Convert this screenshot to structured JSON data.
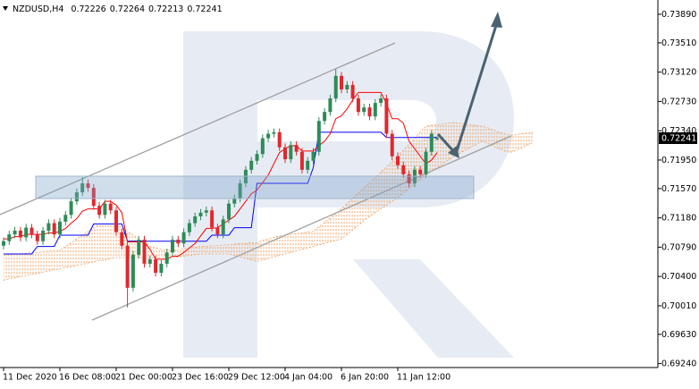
{
  "chart_data": {
    "type": "candlestick",
    "symbol": "NZDUSD,H4",
    "header_values": [
      0.72226,
      0.72264,
      0.72213,
      0.72241
    ],
    "categories": [
      "11 Dec 2020",
      null,
      null,
      null,
      null,
      null,
      null,
      null,
      null,
      null,
      "16 Dec 08:00",
      null,
      null,
      null,
      null,
      null,
      null,
      null,
      null,
      null,
      "21 Dec 00:00",
      null,
      null,
      null,
      null,
      null,
      null,
      null,
      null,
      null,
      "23 Dec 16:00",
      null,
      null,
      null,
      null,
      null,
      null,
      null,
      null,
      null,
      "29 Dec 12:00",
      null,
      null,
      null,
      null,
      null,
      null,
      null,
      null,
      null,
      "4 Jan 04:00",
      null,
      null,
      null,
      null,
      null,
      null,
      null,
      null,
      null,
      "6 Jan 20:00",
      null,
      null,
      null,
      null,
      null,
      null,
      null,
      null,
      null,
      "11 Jan 12:00",
      null,
      null,
      null,
      null,
      null,
      null,
      null,
      null,
      null,
      null,
      null,
      null,
      null,
      null,
      null,
      null,
      null,
      null,
      null,
      null,
      null,
      null,
      null,
      null
    ],
    "open": [
      0.7081,
      0.7087,
      0.7096,
      0.7101,
      0.7092,
      0.7105,
      0.7096,
      0.7087,
      0.7101,
      0.7111,
      0.7096,
      0.7113,
      0.7122,
      0.714,
      0.7152,
      0.7164,
      0.7158,
      0.7134,
      0.7122,
      0.7137,
      0.7128,
      0.7099,
      0.7081,
      0.7025,
      0.7069,
      0.7089,
      0.7057,
      0.7063,
      0.7045,
      0.7057,
      0.7072,
      0.7089,
      0.7084,
      0.7099,
      0.7111,
      0.712,
      0.7125,
      0.7128,
      0.7105,
      0.7096,
      0.7116,
      0.7137,
      0.7144,
      0.7164,
      0.7182,
      0.7194,
      0.7203,
      0.7224,
      0.723,
      0.7232,
      0.7212,
      0.7196,
      0.7215,
      0.7206,
      0.7182,
      0.7194,
      0.7206,
      0.7247,
      0.7259,
      0.7277,
      0.7307,
      0.7289,
      0.7295,
      0.7277,
      0.7259,
      0.7265,
      0.7253,
      0.7271,
      0.7277,
      0.723,
      0.72,
      0.7188,
      0.7176,
      0.7164,
      0.7182,
      0.7176,
      0.7206,
      0.72226,
      null,
      null,
      null,
      null,
      null,
      null,
      null,
      null,
      null,
      null,
      null,
      null,
      null,
      null,
      null,
      null,
      null
    ],
    "high": [
      0.7092,
      0.7101,
      0.7106,
      0.7106,
      0.711,
      0.711,
      0.7101,
      0.7106,
      0.7116,
      0.7116,
      0.7118,
      0.7127,
      0.7145,
      0.7157,
      0.7172,
      0.7169,
      0.7163,
      0.7139,
      0.7142,
      0.7142,
      0.7133,
      0.7104,
      0.7086,
      0.7074,
      0.7094,
      0.7094,
      0.7068,
      0.7068,
      0.7062,
      0.7077,
      0.7094,
      0.7094,
      0.7104,
      0.7116,
      0.7125,
      0.713,
      0.7133,
      0.7133,
      0.711,
      0.7121,
      0.7142,
      0.7149,
      0.7169,
      0.7187,
      0.7199,
      0.7208,
      0.7229,
      0.7235,
      0.7237,
      0.7237,
      0.7217,
      0.722,
      0.722,
      0.7211,
      0.7199,
      0.7211,
      0.7252,
      0.7264,
      0.7282,
      0.7316,
      0.7312,
      0.73,
      0.73,
      0.7282,
      0.727,
      0.727,
      0.7276,
      0.7282,
      0.7282,
      0.7235,
      0.7205,
      0.7193,
      0.7181,
      0.7187,
      0.7187,
      0.7211,
      0.7235,
      0.72264,
      null,
      null,
      null,
      null,
      null,
      null,
      null,
      null,
      null,
      null,
      null,
      null,
      null,
      null,
      null,
      null,
      null
    ],
    "low": [
      0.7076,
      0.7082,
      0.7091,
      0.7087,
      0.7087,
      0.7091,
      0.7082,
      0.7082,
      0.7096,
      0.7091,
      0.7091,
      0.7108,
      0.7117,
      0.7135,
      0.7147,
      0.7153,
      0.7129,
      0.7117,
      0.7117,
      0.7123,
      0.7094,
      0.7076,
      0.6999,
      0.702,
      0.7064,
      0.7052,
      0.7052,
      0.704,
      0.704,
      0.7052,
      0.7067,
      0.7079,
      0.7079,
      0.7094,
      0.7106,
      0.7115,
      0.712,
      0.71,
      0.7091,
      0.7091,
      0.7111,
      0.7132,
      0.7139,
      0.7159,
      0.7177,
      0.7189,
      0.7198,
      0.7219,
      0.7225,
      0.7207,
      0.7191,
      0.7191,
      0.7201,
      0.7177,
      0.7177,
      0.7189,
      0.7201,
      0.7242,
      0.7254,
      0.7272,
      0.7284,
      0.7284,
      0.7272,
      0.7254,
      0.7254,
      0.7248,
      0.7248,
      0.7266,
      0.7225,
      0.7195,
      0.7183,
      0.7171,
      0.7159,
      0.7159,
      0.7171,
      0.7171,
      0.7201,
      0.72213,
      null,
      null,
      null,
      null,
      null,
      null,
      null,
      null,
      null,
      null,
      null,
      null,
      null,
      null,
      null,
      null,
      null
    ],
    "close": [
      0.7087,
      0.7096,
      0.7101,
      0.7092,
      0.7105,
      0.7096,
      0.7087,
      0.7101,
      0.7111,
      0.7096,
      0.7113,
      0.7122,
      0.714,
      0.7152,
      0.7164,
      0.7158,
      0.7134,
      0.7122,
      0.7137,
      0.7128,
      0.7099,
      0.7081,
      0.7025,
      0.7069,
      0.7089,
      0.7057,
      0.7063,
      0.7045,
      0.7057,
      0.7072,
      0.7089,
      0.7084,
      0.7099,
      0.7111,
      0.712,
      0.7125,
      0.7128,
      0.7105,
      0.7096,
      0.7116,
      0.7137,
      0.7144,
      0.7164,
      0.7182,
      0.7194,
      0.7203,
      0.7224,
      0.723,
      0.7232,
      0.7212,
      0.7196,
      0.7215,
      0.7206,
      0.7182,
      0.7194,
      0.7206,
      0.7247,
      0.7259,
      0.7277,
      0.7307,
      0.7289,
      0.7295,
      0.7277,
      0.7259,
      0.7265,
      0.7253,
      0.7271,
      0.7277,
      0.723,
      0.72,
      0.7188,
      0.7176,
      0.7164,
      0.7182,
      0.7176,
      0.7206,
      0.723,
      0.72241,
      null,
      null,
      null,
      null,
      null,
      null,
      null,
      null,
      null,
      null,
      null,
      null,
      null,
      null,
      null,
      null,
      null
    ],
    "up_color": "#2e8b57",
    "down_color": "#e0282e",
    "conversion_line": {
      "color": "#ff0000",
      "values": [
        0.709,
        0.709,
        0.7093,
        0.7093,
        0.7096,
        0.7096,
        0.7096,
        0.7096,
        0.7098,
        0.7098,
        0.71,
        0.7104,
        0.7111,
        0.7117,
        0.7127,
        0.713,
        0.713,
        0.713,
        0.714,
        0.714,
        0.7135,
        0.7125,
        0.7086,
        0.7086,
        0.7086,
        0.7086,
        0.7076,
        0.7063,
        0.7063,
        0.7063,
        0.7067,
        0.7067,
        0.7072,
        0.7078,
        0.7084,
        0.7094,
        0.7104,
        0.7104,
        0.7105,
        0.711,
        0.7115,
        0.712,
        0.713,
        0.714,
        0.715,
        0.7155,
        0.7165,
        0.7175,
        0.719,
        0.7205,
        0.721,
        0.7214,
        0.7214,
        0.7207,
        0.7207,
        0.7207,
        0.7214,
        0.722,
        0.723,
        0.725,
        0.7254,
        0.7263,
        0.7275,
        0.7285,
        0.7285,
        0.7285,
        0.7285,
        0.7285,
        0.727,
        0.725,
        0.725,
        0.7244,
        0.722,
        0.721,
        0.72,
        0.719,
        0.7195,
        0.7205,
        null,
        null,
        null,
        null,
        null,
        null,
        null,
        null,
        null,
        null,
        null,
        null,
        null,
        null,
        null,
        null,
        null
      ]
    },
    "base_line": {
      "color": "#0000ff",
      "values": [
        0.707,
        0.707,
        0.707,
        0.707,
        0.707,
        0.707,
        0.708,
        0.708,
        0.708,
        0.708,
        0.7095,
        0.7095,
        0.7095,
        0.7095,
        0.7095,
        0.7095,
        0.711,
        0.711,
        0.711,
        0.711,
        0.711,
        0.711,
        0.7087,
        0.7087,
        0.7087,
        0.7087,
        0.7087,
        0.7087,
        0.7087,
        0.7087,
        0.7087,
        0.7087,
        0.7087,
        0.7087,
        0.7087,
        0.7087,
        0.7087,
        0.7095,
        0.7095,
        0.7095,
        0.7095,
        0.7105,
        0.7105,
        0.7105,
        0.7105,
        0.7164,
        0.7164,
        0.7164,
        0.7164,
        0.7164,
        0.7164,
        0.7164,
        0.7164,
        0.7164,
        0.7164,
        0.7185,
        0.7232,
        0.7232,
        0.7232,
        0.7232,
        0.7232,
        0.7232,
        0.7232,
        0.7232,
        0.7232,
        0.7232,
        0.7232,
        0.7232,
        0.7225,
        0.7225,
        0.7225,
        0.7225,
        0.7225,
        0.7225,
        0.7225,
        0.7225,
        0.7225,
        0.7225,
        null,
        null,
        null,
        null,
        null,
        null,
        null,
        null,
        null,
        null,
        null,
        null,
        null,
        null,
        null,
        null,
        null
      ]
    },
    "cloud": {
      "color": "#f0a060",
      "span_a": [
        0.7068,
        0.7069,
        0.707,
        0.707,
        0.7071,
        0.7072,
        0.7072,
        0.7073,
        0.7074,
        0.7074,
        0.7075,
        0.708,
        0.7085,
        0.709,
        0.7095,
        0.71,
        0.7105,
        0.711,
        0.711,
        0.711,
        0.711,
        0.7105,
        0.71,
        0.7095,
        0.709,
        0.7085,
        0.708,
        0.7078,
        0.7076,
        0.7075,
        0.7075,
        0.7076,
        0.7077,
        0.7078,
        0.7079,
        0.708,
        0.708,
        0.7081,
        0.7081,
        0.7082,
        0.7082,
        0.7083,
        0.7084,
        0.7084,
        0.7085,
        0.7085,
        0.7088,
        0.709,
        0.7092,
        0.7094,
        0.7095,
        0.7096,
        0.7097,
        0.7098,
        0.7099,
        0.71,
        0.7106,
        0.7112,
        0.7118,
        0.7124,
        0.713,
        0.7137,
        0.7144,
        0.7151,
        0.7158,
        0.7165,
        0.7172,
        0.7179,
        0.7186,
        0.7193,
        0.72,
        0.7208,
        0.7216,
        0.7224,
        0.7232,
        0.724,
        0.7241,
        0.7242,
        0.7243,
        0.7244,
        0.7245,
        0.7244,
        0.7243,
        0.7242,
        0.7241,
        0.724,
        0.7238,
        0.7235,
        0.7232,
        0.723,
        0.7228,
        0.7229,
        0.723,
        0.7231,
        0.7232
      ],
      "span_b": [
        0.7035,
        0.7037,
        0.7038,
        0.704,
        0.7041,
        0.7043,
        0.7044,
        0.7046,
        0.7047,
        0.7049,
        0.705,
        0.7052,
        0.7053,
        0.7055,
        0.7056,
        0.7058,
        0.7059,
        0.7061,
        0.7062,
        0.7064,
        0.7065,
        0.7065,
        0.7065,
        0.7065,
        0.7065,
        0.7065,
        0.7065,
        0.7065,
        0.7065,
        0.7065,
        0.7065,
        0.7066,
        0.7067,
        0.7068,
        0.7069,
        0.707,
        0.707,
        0.707,
        0.707,
        0.707,
        0.707,
        0.7068,
        0.7066,
        0.7064,
        0.7062,
        0.706,
        0.7062,
        0.7064,
        0.7066,
        0.7068,
        0.707,
        0.7072,
        0.7074,
        0.7076,
        0.7078,
        0.708,
        0.7082,
        0.7084,
        0.7086,
        0.7088,
        0.709,
        0.7096,
        0.7102,
        0.7108,
        0.7114,
        0.712,
        0.7125,
        0.713,
        0.7135,
        0.714,
        0.7145,
        0.7151,
        0.7157,
        0.7163,
        0.7169,
        0.7175,
        0.718,
        0.7185,
        0.719,
        0.7195,
        0.72,
        0.7204,
        0.7208,
        0.7212,
        0.7216,
        0.722,
        0.7217,
        0.7213,
        0.721,
        0.7207,
        0.7205,
        0.7208,
        0.7211,
        0.7215,
        0.7218
      ]
    },
    "last_price": 0.72241,
    "ylim": [
      0.692,
      0.7408
    ],
    "yticks": [
      {
        "value": 0.7389,
        "label": "0.73890"
      },
      {
        "value": 0.7351,
        "label": "0.73510"
      },
      {
        "value": 0.7312,
        "label": "0.73120"
      },
      {
        "value": 0.7273,
        "label": "0.72730"
      },
      {
        "value": 0.7234,
        "label": "0.72340"
      },
      {
        "value": 0.7195,
        "label": "0.71950"
      },
      {
        "value": 0.7157,
        "label": "0.71570"
      },
      {
        "value": 0.7118,
        "label": "0.71180"
      },
      {
        "value": 0.7079,
        "label": "0.70790"
      },
      {
        "value": 0.704,
        "label": "0.70400"
      },
      {
        "value": 0.7001,
        "label": "0.70010"
      },
      {
        "value": 0.6963,
        "label": "0.69630"
      },
      {
        "value": 0.6924,
        "label": "0.69240"
      }
    ],
    "grid": false
  }
}
